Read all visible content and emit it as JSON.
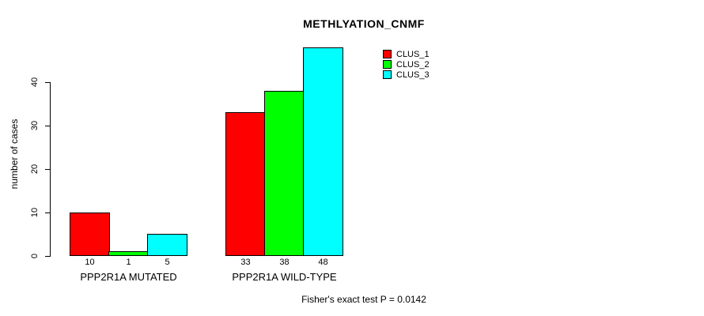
{
  "chart_data": {
    "type": "bar",
    "title": "METHLYATION_CNMF",
    "xlabel": "",
    "ylabel": "number of cases",
    "categories": [
      "PPP2R1A MUTATED",
      "PPP2R1A WILD-TYPE"
    ],
    "series": [
      {
        "name": "CLUS_1",
        "color": "#ff0000",
        "values": [
          10,
          33
        ]
      },
      {
        "name": "CLUS_2",
        "color": "#00ff00",
        "values": [
          1,
          38
        ]
      },
      {
        "name": "CLUS_3",
        "color": "#00ffff",
        "values": [
          5,
          48
        ]
      }
    ],
    "bar_value_labels": [
      [
        10,
        1,
        5
      ],
      [
        33,
        38,
        48
      ]
    ],
    "yticks": [
      0,
      10,
      20,
      30,
      40
    ],
    "ylim": [
      0,
      48
    ],
    "grid": false,
    "legend_position": "top-right",
    "bar_border_color": "#000000",
    "background_color": "#ffffff",
    "annotation": "Fisher's exact test P = 0.0142"
  }
}
